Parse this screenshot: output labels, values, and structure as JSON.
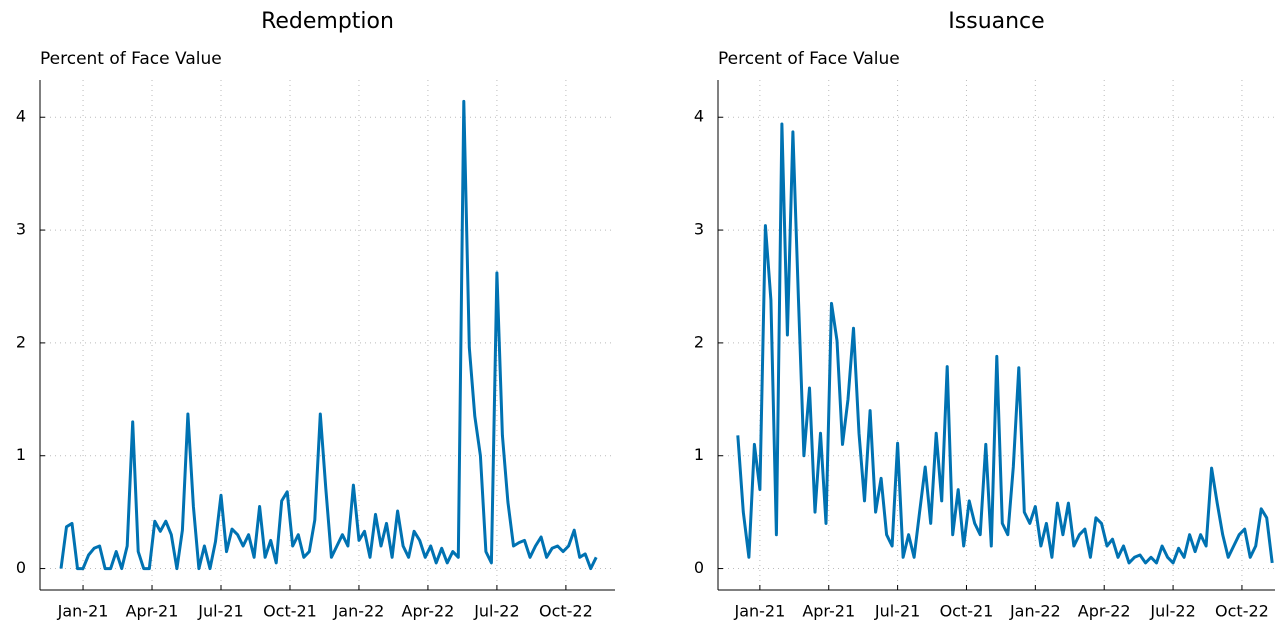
{
  "chart_data": [
    {
      "type": "line",
      "title": "Redemption",
      "ylabel": "Percent of Face Value",
      "color": "#0072b2",
      "grid": true,
      "xlim": [
        2020.844,
        2022.928
      ],
      "ylim": [
        -0.19,
        4.33
      ],
      "xticks": [
        {
          "value": 2021.0,
          "label": "Jan-21"
        },
        {
          "value": 2021.25,
          "label": "Apr-21"
        },
        {
          "value": 2021.5,
          "label": "Jul-21"
        },
        {
          "value": 2021.75,
          "label": "Oct-21"
        },
        {
          "value": 2022.0,
          "label": "Jan-22"
        },
        {
          "value": 2022.25,
          "label": "Apr-22"
        },
        {
          "value": 2022.5,
          "label": "Jul-22"
        },
        {
          "value": 2022.75,
          "label": "Oct-22"
        }
      ],
      "yticks": [
        0,
        1,
        2,
        3,
        4
      ],
      "x": [
        2020.92,
        2020.94,
        2020.96,
        2020.98,
        2021.0,
        2021.02,
        2021.04,
        2021.06,
        2021.08,
        2021.1,
        2021.12,
        2021.14,
        2021.16,
        2021.18,
        2021.2,
        2021.22,
        2021.24,
        2021.26,
        2021.28,
        2021.3,
        2021.32,
        2021.34,
        2021.36,
        2021.38,
        2021.4,
        2021.42,
        2021.44,
        2021.46,
        2021.48,
        2021.5,
        2021.52,
        2021.54,
        2021.56,
        2021.58,
        2021.6,
        2021.62,
        2021.64,
        2021.66,
        2021.68,
        2021.7,
        2021.72,
        2021.74,
        2021.76,
        2021.78,
        2021.8,
        2021.82,
        2021.84,
        2021.86,
        2021.88,
        2021.9,
        2021.92,
        2021.94,
        2021.96,
        2021.98,
        2022.0,
        2022.02,
        2022.04,
        2022.06,
        2022.08,
        2022.1,
        2022.12,
        2022.14,
        2022.16,
        2022.18,
        2022.2,
        2022.22,
        2022.24,
        2022.26,
        2022.28,
        2022.3,
        2022.32,
        2022.34,
        2022.36,
        2022.38,
        2022.4,
        2022.42,
        2022.44,
        2022.46,
        2022.48,
        2022.5,
        2022.52,
        2022.54,
        2022.56,
        2022.58,
        2022.6,
        2022.62,
        2022.64,
        2022.66,
        2022.68,
        2022.7,
        2022.72,
        2022.74,
        2022.76,
        2022.78,
        2022.8,
        2022.82,
        2022.84,
        2022.86
      ],
      "values": [
        0,
        0.37,
        0.4,
        0,
        0,
        0.12,
        0.18,
        0.2,
        0,
        0,
        0.15,
        0,
        0.2,
        1.3,
        0.15,
        0,
        0,
        0.42,
        0.33,
        0.42,
        0.3,
        0,
        0.34,
        1.37,
        0.55,
        0,
        0.2,
        0,
        0.24,
        0.65,
        0.15,
        0.35,
        0.3,
        0.2,
        0.3,
        0.1,
        0.55,
        0.1,
        0.25,
        0.05,
        0.6,
        0.68,
        0.2,
        0.3,
        0.1,
        0.15,
        0.43,
        1.37,
        0.71,
        0.1,
        0.2,
        0.3,
        0.2,
        0.74,
        0.25,
        0.33,
        0.1,
        0.48,
        0.2,
        0.4,
        0.1,
        0.51,
        0.2,
        0.1,
        0.33,
        0.25,
        0.1,
        0.2,
        0.05,
        0.18,
        0.05,
        0.15,
        0.1,
        4.14,
        1.96,
        1.35,
        1.0,
        0.15,
        0.05,
        2.62,
        1.18,
        0.59,
        0.2,
        0.23,
        0.25,
        0.1,
        0.2,
        0.28,
        0.1,
        0.18,
        0.2,
        0.15,
        0.2,
        0.34,
        0.1,
        0.13,
        0,
        0.1
      ]
    },
    {
      "type": "line",
      "title": "Issuance",
      "ylabel": "Percent of Face Value",
      "color": "#0072b2",
      "grid": true,
      "xlim": [
        2020.848,
        2022.87
      ],
      "ylim": [
        -0.19,
        4.33
      ],
      "xticks": [
        {
          "value": 2021.0,
          "label": "Jan-21"
        },
        {
          "value": 2021.25,
          "label": "Apr-21"
        },
        {
          "value": 2021.5,
          "label": "Jul-21"
        },
        {
          "value": 2021.75,
          "label": "Oct-21"
        },
        {
          "value": 2022.0,
          "label": "Jan-22"
        },
        {
          "value": 2022.25,
          "label": "Apr-22"
        },
        {
          "value": 2022.5,
          "label": "Jul-22"
        },
        {
          "value": 2022.75,
          "label": "Oct-22"
        }
      ],
      "yticks": [
        0,
        1,
        2,
        3,
        4
      ],
      "x": [
        2020.92,
        2020.94,
        2020.96,
        2020.98,
        2021.0,
        2021.02,
        2021.04,
        2021.06,
        2021.08,
        2021.1,
        2021.12,
        2021.14,
        2021.16,
        2021.18,
        2021.2,
        2021.22,
        2021.24,
        2021.26,
        2021.28,
        2021.3,
        2021.32,
        2021.34,
        2021.36,
        2021.38,
        2021.4,
        2021.42,
        2021.44,
        2021.46,
        2021.48,
        2021.5,
        2021.52,
        2021.54,
        2021.56,
        2021.58,
        2021.6,
        2021.62,
        2021.64,
        2021.66,
        2021.68,
        2021.7,
        2021.72,
        2021.74,
        2021.76,
        2021.78,
        2021.8,
        2021.82,
        2021.84,
        2021.86,
        2021.88,
        2021.9,
        2021.92,
        2021.94,
        2021.96,
        2021.98,
        2022.0,
        2022.02,
        2022.04,
        2022.06,
        2022.08,
        2022.1,
        2022.12,
        2022.14,
        2022.16,
        2022.18,
        2022.2,
        2022.22,
        2022.24,
        2022.26,
        2022.28,
        2022.3,
        2022.32,
        2022.34,
        2022.36,
        2022.38,
        2022.4,
        2022.42,
        2022.44,
        2022.46,
        2022.48,
        2022.5,
        2022.52,
        2022.54,
        2022.56,
        2022.58,
        2022.6,
        2022.62,
        2022.64,
        2022.66,
        2022.68,
        2022.7,
        2022.72,
        2022.74,
        2022.76,
        2022.78,
        2022.8,
        2022.82,
        2022.84,
        2022.86
      ],
      "values": [
        1.18,
        0.5,
        0.1,
        1.1,
        0.7,
        3.04,
        2.38,
        0.3,
        3.94,
        2.07,
        3.87,
        2.4,
        1.0,
        1.6,
        0.5,
        1.2,
        0.4,
        2.35,
        2.02,
        1.1,
        1.5,
        2.13,
        1.2,
        0.6,
        1.4,
        0.5,
        0.8,
        0.3,
        0.2,
        1.11,
        0.1,
        0.3,
        0.1,
        0.5,
        0.9,
        0.4,
        1.2,
        0.6,
        1.79,
        0.3,
        0.7,
        0.2,
        0.6,
        0.4,
        0.3,
        1.1,
        0.2,
        1.88,
        0.4,
        0.3,
        0.9,
        1.78,
        0.5,
        0.4,
        0.55,
        0.2,
        0.4,
        0.1,
        0.58,
        0.3,
        0.58,
        0.2,
        0.3,
        0.35,
        0.1,
        0.45,
        0.4,
        0.2,
        0.26,
        0.1,
        0.2,
        0.05,
        0.1,
        0.12,
        0.05,
        0.1,
        0.05,
        0.2,
        0.1,
        0.05,
        0.18,
        0.1,
        0.3,
        0.15,
        0.3,
        0.2,
        0.89,
        0.58,
        0.3,
        0.1,
        0.2,
        0.3,
        0.35,
        0.1,
        0.2,
        0.53,
        0.45,
        0.05
      ]
    }
  ]
}
